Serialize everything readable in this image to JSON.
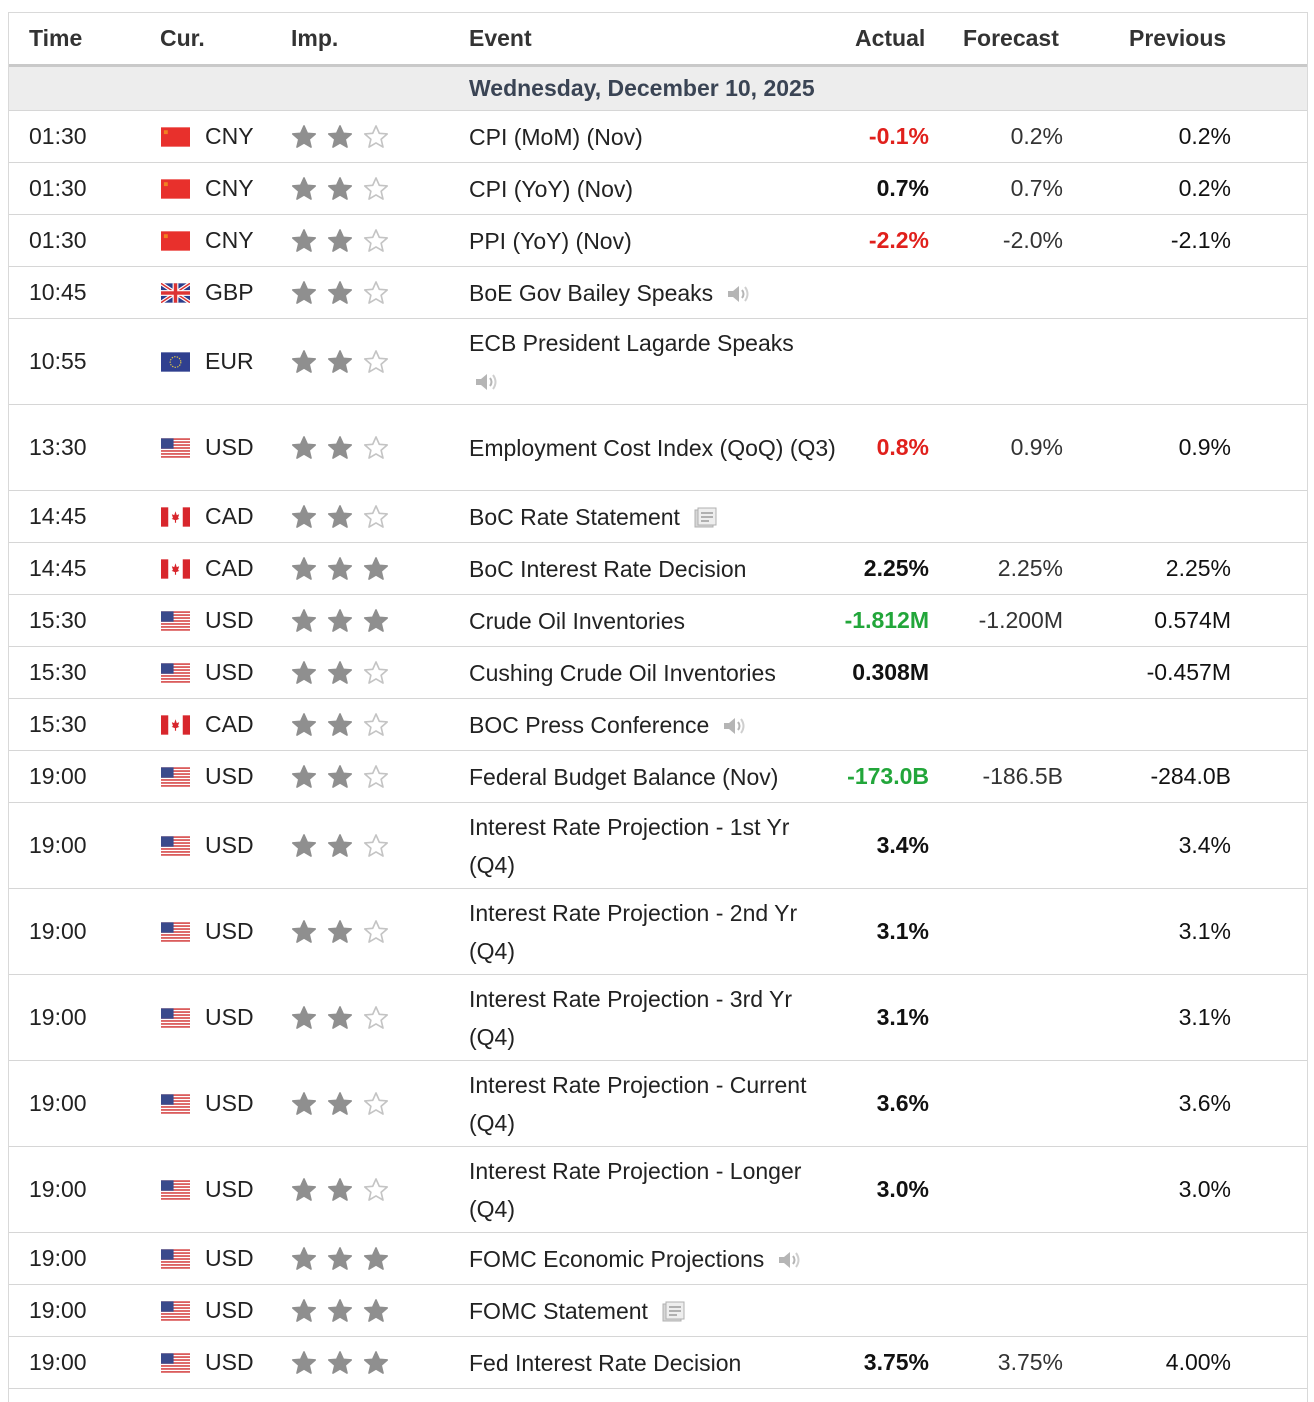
{
  "columns": {
    "time": "Time",
    "currency": "Cur.",
    "importance": "Imp.",
    "event": "Event",
    "actual": "Actual",
    "forecast": "Forecast",
    "previous": "Previous"
  },
  "date_header": "Wednesday, December 10, 2025",
  "colors": {
    "negative": "#e0201c",
    "positive": "#22a63a",
    "neutral": "#111111",
    "star_filled": "#8f8f8f",
    "star_empty": "#c4c4c4"
  },
  "rows": [
    {
      "time": "01:30",
      "flag": "cn",
      "currency": "CNY",
      "stars": 2,
      "event": "CPI (MoM) (Nov)",
      "icon": "",
      "actual": "-0.1%",
      "actual_color": "negative",
      "forecast": "0.2%",
      "previous": "0.2%"
    },
    {
      "time": "01:30",
      "flag": "cn",
      "currency": "CNY",
      "stars": 2,
      "event": "CPI (YoY) (Nov)",
      "icon": "",
      "actual": "0.7%",
      "actual_color": "neutral",
      "forecast": "0.7%",
      "previous": "0.2%"
    },
    {
      "time": "01:30",
      "flag": "cn",
      "currency": "CNY",
      "stars": 2,
      "event": "PPI (YoY) (Nov)",
      "icon": "",
      "actual": "-2.2%",
      "actual_color": "negative",
      "forecast": "-2.0%",
      "previous": "-2.1%"
    },
    {
      "time": "10:45",
      "flag": "gb",
      "currency": "GBP",
      "stars": 2,
      "event": "BoE Gov Bailey Speaks",
      "icon": "speaker-icon",
      "actual": "",
      "actual_color": "neutral",
      "forecast": "",
      "previous": ""
    },
    {
      "time": "10:55",
      "flag": "eu",
      "currency": "EUR",
      "stars": 2,
      "event": "ECB President Lagarde Speaks",
      "icon": "speaker-icon",
      "icon_newline": true,
      "actual": "",
      "actual_color": "neutral",
      "forecast": "",
      "previous": ""
    },
    {
      "time": "13:30",
      "flag": "us",
      "currency": "USD",
      "stars": 2,
      "event": "Employment Cost Index (QoQ) (Q3)",
      "icon": "",
      "actual": "0.8%",
      "actual_color": "negative",
      "forecast": "0.9%",
      "previous": "0.9%"
    },
    {
      "time": "14:45",
      "flag": "ca",
      "currency": "CAD",
      "stars": 2,
      "event": "BoC Rate Statement",
      "icon": "document-icon",
      "actual": "",
      "actual_color": "neutral",
      "forecast": "",
      "previous": ""
    },
    {
      "time": "14:45",
      "flag": "ca",
      "currency": "CAD",
      "stars": 3,
      "event": "BoC Interest Rate Decision",
      "icon": "",
      "actual": "2.25%",
      "actual_color": "neutral",
      "forecast": "2.25%",
      "previous": "2.25%"
    },
    {
      "time": "15:30",
      "flag": "us",
      "currency": "USD",
      "stars": 3,
      "event": "Crude Oil Inventories",
      "icon": "",
      "actual": "-1.812M",
      "actual_color": "positive",
      "forecast": "-1.200M",
      "previous": "0.574M"
    },
    {
      "time": "15:30",
      "flag": "us",
      "currency": "USD",
      "stars": 2,
      "event": "Cushing Crude Oil Inventories",
      "icon": "",
      "actual": "0.308M",
      "actual_color": "neutral",
      "forecast": "",
      "previous": "-0.457M"
    },
    {
      "time": "15:30",
      "flag": "ca",
      "currency": "CAD",
      "stars": 2,
      "event": "BOC Press Conference",
      "icon": "speaker-icon",
      "actual": "",
      "actual_color": "neutral",
      "forecast": "",
      "previous": ""
    },
    {
      "time": "19:00",
      "flag": "us",
      "currency": "USD",
      "stars": 2,
      "event": "Federal Budget Balance (Nov)",
      "icon": "",
      "actual": "-173.0B",
      "actual_color": "positive",
      "forecast": "-186.5B",
      "previous": "-284.0B"
    },
    {
      "time": "19:00",
      "flag": "us",
      "currency": "USD",
      "stars": 2,
      "event": "Interest Rate Projection - 1st Yr (Q4)",
      "icon": "",
      "actual": "3.4%",
      "actual_color": "neutral",
      "forecast": "",
      "previous": "3.4%"
    },
    {
      "time": "19:00",
      "flag": "us",
      "currency": "USD",
      "stars": 2,
      "event": "Interest Rate Projection - 2nd Yr (Q4)",
      "icon": "",
      "actual": "3.1%",
      "actual_color": "neutral",
      "forecast": "",
      "previous": "3.1%"
    },
    {
      "time": "19:00",
      "flag": "us",
      "currency": "USD",
      "stars": 2,
      "event": "Interest Rate Projection - 3rd Yr (Q4)",
      "icon": "",
      "actual": "3.1%",
      "actual_color": "neutral",
      "forecast": "",
      "previous": "3.1%"
    },
    {
      "time": "19:00",
      "flag": "us",
      "currency": "USD",
      "stars": 2,
      "event": "Interest Rate Projection - Current (Q4)",
      "icon": "",
      "actual": "3.6%",
      "actual_color": "neutral",
      "forecast": "",
      "previous": "3.6%"
    },
    {
      "time": "19:00",
      "flag": "us",
      "currency": "USD",
      "stars": 2,
      "event": "Interest Rate Projection - Longer (Q4)",
      "icon": "",
      "actual": "3.0%",
      "actual_color": "neutral",
      "forecast": "",
      "previous": "3.0%"
    },
    {
      "time": "19:00",
      "flag": "us",
      "currency": "USD",
      "stars": 3,
      "event": "FOMC Economic Projections",
      "icon": "speaker-icon",
      "actual": "",
      "actual_color": "neutral",
      "forecast": "",
      "previous": ""
    },
    {
      "time": "19:00",
      "flag": "us",
      "currency": "USD",
      "stars": 3,
      "event": "FOMC Statement",
      "icon": "document-icon",
      "actual": "",
      "actual_color": "neutral",
      "forecast": "",
      "previous": ""
    },
    {
      "time": "19:00",
      "flag": "us",
      "currency": "USD",
      "stars": 3,
      "event": "Fed Interest Rate Decision",
      "icon": "",
      "actual": "3.75%",
      "actual_color": "neutral",
      "forecast": "3.75%",
      "previous": "4.00%"
    }
  ]
}
